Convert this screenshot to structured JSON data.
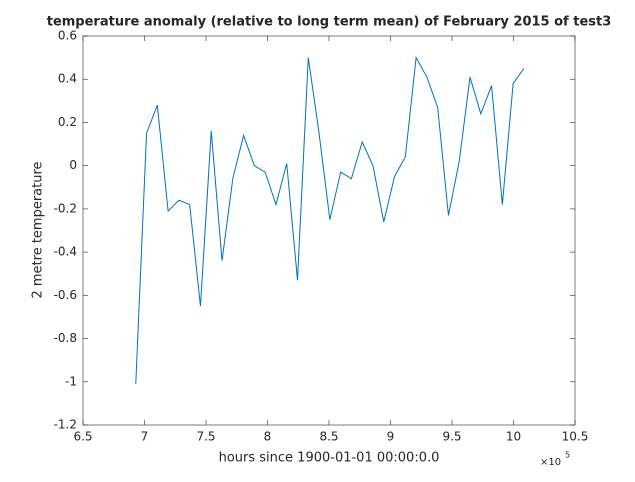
{
  "chart_data": {
    "type": "line",
    "title": "temperature anomaly (relative to long term mean) of February 2015 of test3",
    "x_label": "hours since 1900-01-01 00:00:0.0",
    "y_label": "2 metre temperature",
    "x_multiplier": {
      "base": "×10",
      "exponent": "5"
    },
    "x": [
      692900,
      701666,
      710432,
      719198,
      727964,
      736730,
      745496,
      754262,
      763028,
      771794,
      780560,
      789326,
      798092,
      806858,
      815624,
      824390,
      833156,
      841922,
      850688,
      859454,
      868220,
      876986,
      885752,
      894518,
      903284,
      912050,
      920816,
      929582,
      938348,
      947114,
      955880,
      964646,
      973412,
      982178,
      990944,
      999710,
      1008476
    ],
    "series": [
      {
        "color": "#0072bd",
        "values": [
          -1.01,
          0.15,
          0.28,
          -0.21,
          -0.16,
          -0.18,
          -0.65,
          0.16,
          -0.44,
          -0.06,
          0.14,
          0.0,
          -0.03,
          -0.18,
          0.01,
          -0.53,
          0.5,
          0.15,
          -0.25,
          -0.03,
          -0.06,
          0.11,
          0.0,
          -0.26,
          -0.05,
          0.04,
          0.5,
          0.41,
          0.27,
          -0.23,
          0.02,
          0.41,
          0.24,
          0.37,
          -0.18,
          0.38,
          0.45
        ]
      }
    ],
    "xlim": [
      650000,
      1050000
    ],
    "xticks": [
      {
        "value": 650000,
        "label": "6.5"
      },
      {
        "value": 700000,
        "label": "7"
      },
      {
        "value": 750000,
        "label": "7.5"
      },
      {
        "value": 800000,
        "label": "8"
      },
      {
        "value": 850000,
        "label": "8.5"
      },
      {
        "value": 900000,
        "label": "9"
      },
      {
        "value": 950000,
        "label": "9.5"
      },
      {
        "value": 1000000,
        "label": "10"
      },
      {
        "value": 1050000,
        "label": "10.5"
      }
    ],
    "ylim": [
      -1.2,
      0.6
    ],
    "yticks": [
      -1.2,
      -1,
      -0.8,
      -0.6,
      -0.4,
      -0.2,
      0,
      0.2,
      0.4,
      0.6
    ],
    "grid": false
  }
}
